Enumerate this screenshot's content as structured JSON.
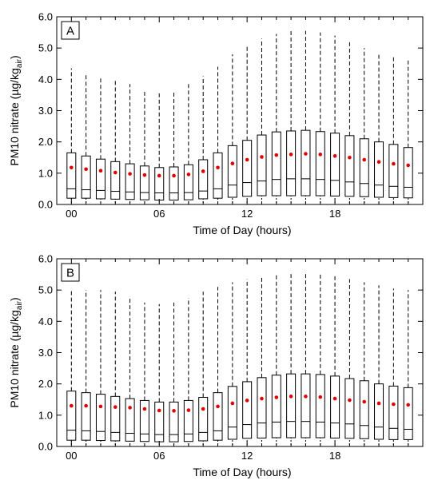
{
  "colors": {
    "box": "#000000",
    "mean_marker": "#e00000",
    "background": "#ffffff"
  },
  "chart_data": [
    {
      "type": "box",
      "panel_label": "A",
      "xlabel": "Time of Day (hours)",
      "ylabel": "PM10 nitrate (µg/kg",
      "ylabel_sub": "air",
      "ylabel_close": ")",
      "xlim": [
        -1,
        24
      ],
      "ylim": [
        0,
        6
      ],
      "xticks": [
        0,
        6,
        12,
        18
      ],
      "xtick_labels": [
        "00",
        "06",
        "12",
        "18"
      ],
      "yticks": [
        0,
        1,
        2,
        3,
        4,
        5,
        6
      ],
      "ytick_labels": [
        "0.0",
        "1.0",
        "2.0",
        "3.0",
        "4.0",
        "5.0",
        "6.0"
      ],
      "hours": [
        0,
        1,
        2,
        3,
        4,
        5,
        6,
        7,
        8,
        9,
        10,
        11,
        12,
        13,
        14,
        15,
        16,
        17,
        18,
        19,
        20,
        21,
        22,
        23
      ],
      "whisker_low": [
        0.05,
        0.05,
        0.05,
        0.05,
        0.05,
        0.05,
        0.05,
        0.05,
        0.05,
        0.05,
        0.05,
        0.05,
        0.05,
        0.05,
        0.05,
        0.05,
        0.05,
        0.05,
        0.05,
        0.05,
        0.05,
        0.05,
        0.05,
        0.05
      ],
      "q1": [
        0.2,
        0.2,
        0.18,
        0.17,
        0.16,
        0.15,
        0.14,
        0.14,
        0.15,
        0.18,
        0.2,
        0.23,
        0.26,
        0.28,
        0.28,
        0.28,
        0.28,
        0.28,
        0.27,
        0.26,
        0.25,
        0.23,
        0.22,
        0.21
      ],
      "median": [
        0.5,
        0.47,
        0.45,
        0.42,
        0.4,
        0.38,
        0.37,
        0.37,
        0.38,
        0.43,
        0.5,
        0.62,
        0.7,
        0.75,
        0.8,
        0.82,
        0.82,
        0.8,
        0.77,
        0.72,
        0.67,
        0.62,
        0.58,
        0.55
      ],
      "mean": [
        1.18,
        1.13,
        1.08,
        1.02,
        0.98,
        0.94,
        0.92,
        0.92,
        0.96,
        1.06,
        1.18,
        1.31,
        1.43,
        1.52,
        1.58,
        1.6,
        1.62,
        1.6,
        1.55,
        1.5,
        1.43,
        1.36,
        1.3,
        1.25
      ],
      "q3": [
        1.65,
        1.55,
        1.45,
        1.37,
        1.3,
        1.23,
        1.18,
        1.2,
        1.27,
        1.43,
        1.65,
        1.88,
        2.05,
        2.22,
        2.32,
        2.35,
        2.37,
        2.33,
        2.28,
        2.2,
        2.1,
        2.0,
        1.92,
        1.82
      ],
      "whisker_high": [
        4.35,
        4.2,
        4.1,
        3.95,
        3.85,
        3.6,
        3.55,
        3.6,
        3.85,
        4.1,
        4.4,
        4.8,
        5.1,
        5.3,
        5.45,
        5.55,
        5.55,
        5.5,
        5.4,
        5.2,
        5.0,
        4.85,
        4.75,
        4.65
      ]
    },
    {
      "type": "box",
      "panel_label": "B",
      "xlabel": "Time of Day (hours)",
      "ylabel": "PM10 nitrate (µg/kg",
      "ylabel_sub": "air",
      "ylabel_close": ")",
      "xlim": [
        -1,
        24
      ],
      "ylim": [
        0,
        6
      ],
      "xticks": [
        0,
        6,
        12,
        18
      ],
      "xtick_labels": [
        "00",
        "06",
        "12",
        "18"
      ],
      "yticks": [
        0,
        1,
        2,
        3,
        4,
        5,
        6
      ],
      "ytick_labels": [
        "0.0",
        "1.0",
        "2.0",
        "3.0",
        "4.0",
        "5.0",
        "6.0"
      ],
      "hours": [
        0,
        1,
        2,
        3,
        4,
        5,
        6,
        7,
        8,
        9,
        10,
        11,
        12,
        13,
        14,
        15,
        16,
        17,
        18,
        19,
        20,
        21,
        22,
        23
      ],
      "whisker_low": [
        0.05,
        0.05,
        0.05,
        0.05,
        0.05,
        0.05,
        0.05,
        0.05,
        0.05,
        0.05,
        0.05,
        0.05,
        0.05,
        0.05,
        0.05,
        0.05,
        0.05,
        0.05,
        0.05,
        0.05,
        0.05,
        0.05,
        0.05,
        0.05
      ],
      "q1": [
        0.2,
        0.2,
        0.19,
        0.18,
        0.17,
        0.16,
        0.15,
        0.15,
        0.16,
        0.18,
        0.2,
        0.23,
        0.26,
        0.27,
        0.28,
        0.28,
        0.28,
        0.28,
        0.27,
        0.26,
        0.25,
        0.23,
        0.22,
        0.22
      ],
      "median": [
        0.52,
        0.5,
        0.48,
        0.45,
        0.42,
        0.4,
        0.38,
        0.38,
        0.4,
        0.45,
        0.5,
        0.62,
        0.7,
        0.75,
        0.78,
        0.8,
        0.8,
        0.78,
        0.75,
        0.72,
        0.67,
        0.62,
        0.58,
        0.55
      ],
      "mean": [
        1.3,
        1.3,
        1.28,
        1.26,
        1.24,
        1.2,
        1.15,
        1.14,
        1.16,
        1.2,
        1.28,
        1.38,
        1.47,
        1.53,
        1.57,
        1.6,
        1.6,
        1.58,
        1.53,
        1.48,
        1.43,
        1.38,
        1.35,
        1.33
      ],
      "q3": [
        1.77,
        1.72,
        1.67,
        1.6,
        1.53,
        1.47,
        1.42,
        1.42,
        1.47,
        1.57,
        1.72,
        1.92,
        2.07,
        2.2,
        2.28,
        2.32,
        2.32,
        2.3,
        2.25,
        2.17,
        2.1,
        2.0,
        1.93,
        1.88
      ],
      "whisker_high": [
        5.0,
        5.0,
        5.0,
        4.95,
        4.8,
        4.6,
        4.55,
        4.6,
        4.75,
        4.95,
        5.1,
        5.25,
        5.35,
        5.45,
        5.5,
        5.55,
        5.55,
        5.5,
        5.45,
        5.35,
        5.25,
        5.15,
        5.05,
        5.0
      ]
    }
  ]
}
